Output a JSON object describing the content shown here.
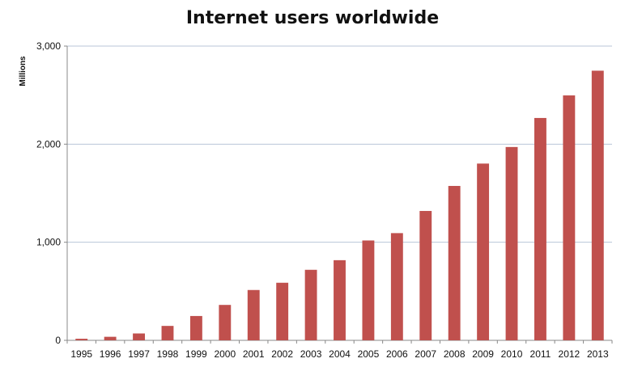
{
  "chart_data": {
    "type": "bar",
    "title": "Internet users worldwide",
    "xlabel": "",
    "ylabel": "Millions",
    "ylim": [
      0,
      3000
    ],
    "yticks": [
      0,
      1000,
      2000,
      3000
    ],
    "ytick_labels": [
      "0",
      "1,000",
      "2,000",
      "3,000"
    ],
    "grid": true,
    "legend": "none",
    "bar_color": "#C0504D",
    "categories": [
      "1995",
      "1996",
      "1997",
      "1998",
      "1999",
      "2000",
      "2001",
      "2002",
      "2003",
      "2004",
      "2005",
      "2006",
      "2007",
      "2008",
      "2009",
      "2010",
      "2011",
      "2012",
      "2013"
    ],
    "values": [
      16,
      36,
      70,
      147,
      248,
      361,
      513,
      587,
      719,
      817,
      1018,
      1093,
      1319,
      1574,
      1802,
      1971,
      2267,
      2497,
      2749
    ]
  }
}
